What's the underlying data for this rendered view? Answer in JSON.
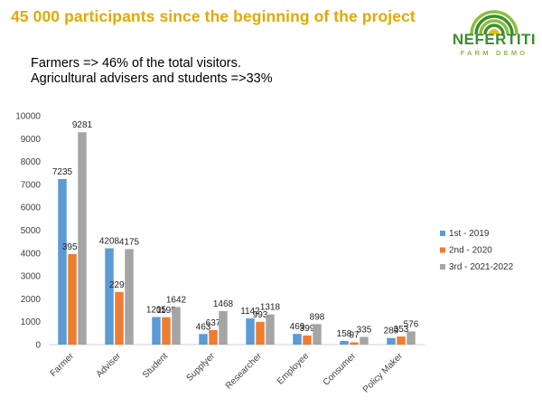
{
  "header": {
    "title": "45 000 participants since the beginning of the project",
    "subtitle_lines": [
      "Farmers => 46% of the total visitors.",
      "Agricultural advisers and students =>33%"
    ]
  },
  "logo": {
    "name": "NEFERTITI",
    "tagline": "FARM DEMO",
    "colors": {
      "green": "#3a8f2a",
      "lime": "#8cbf3f",
      "yellow": "#e6c20a"
    }
  },
  "colors": {
    "title": "#e6a800",
    "series": [
      "#5b9bd5",
      "#ed7d31",
      "#a5a5a5"
    ]
  },
  "chart_data": {
    "type": "bar",
    "categories": [
      "Farmer",
      "Adviser",
      "Student",
      "Supplyer",
      "Researcher",
      "Employee",
      "Consumer",
      "Policy Maker"
    ],
    "series": [
      {
        "name": "1st - 2019",
        "values": [
          7235,
          4208,
          1205,
          463,
          1142,
          469,
          158,
          289
        ]
      },
      {
        "name": "2nd - 2020",
        "values": [
          3957,
          2299,
          1195,
          637,
          993,
          399,
          97,
          353
        ]
      },
      {
        "name": "3rd - 2021-2022",
        "values": [
          9281,
          4175,
          1642,
          1468,
          1318,
          898,
          335,
          576
        ]
      }
    ],
    "y_ticks": [
      0,
      1000,
      2000,
      3000,
      4000,
      5000,
      6000,
      7000,
      8000,
      9000,
      10000
    ],
    "ylim": [
      0,
      10000
    ],
    "grid": false,
    "legend": "right"
  }
}
